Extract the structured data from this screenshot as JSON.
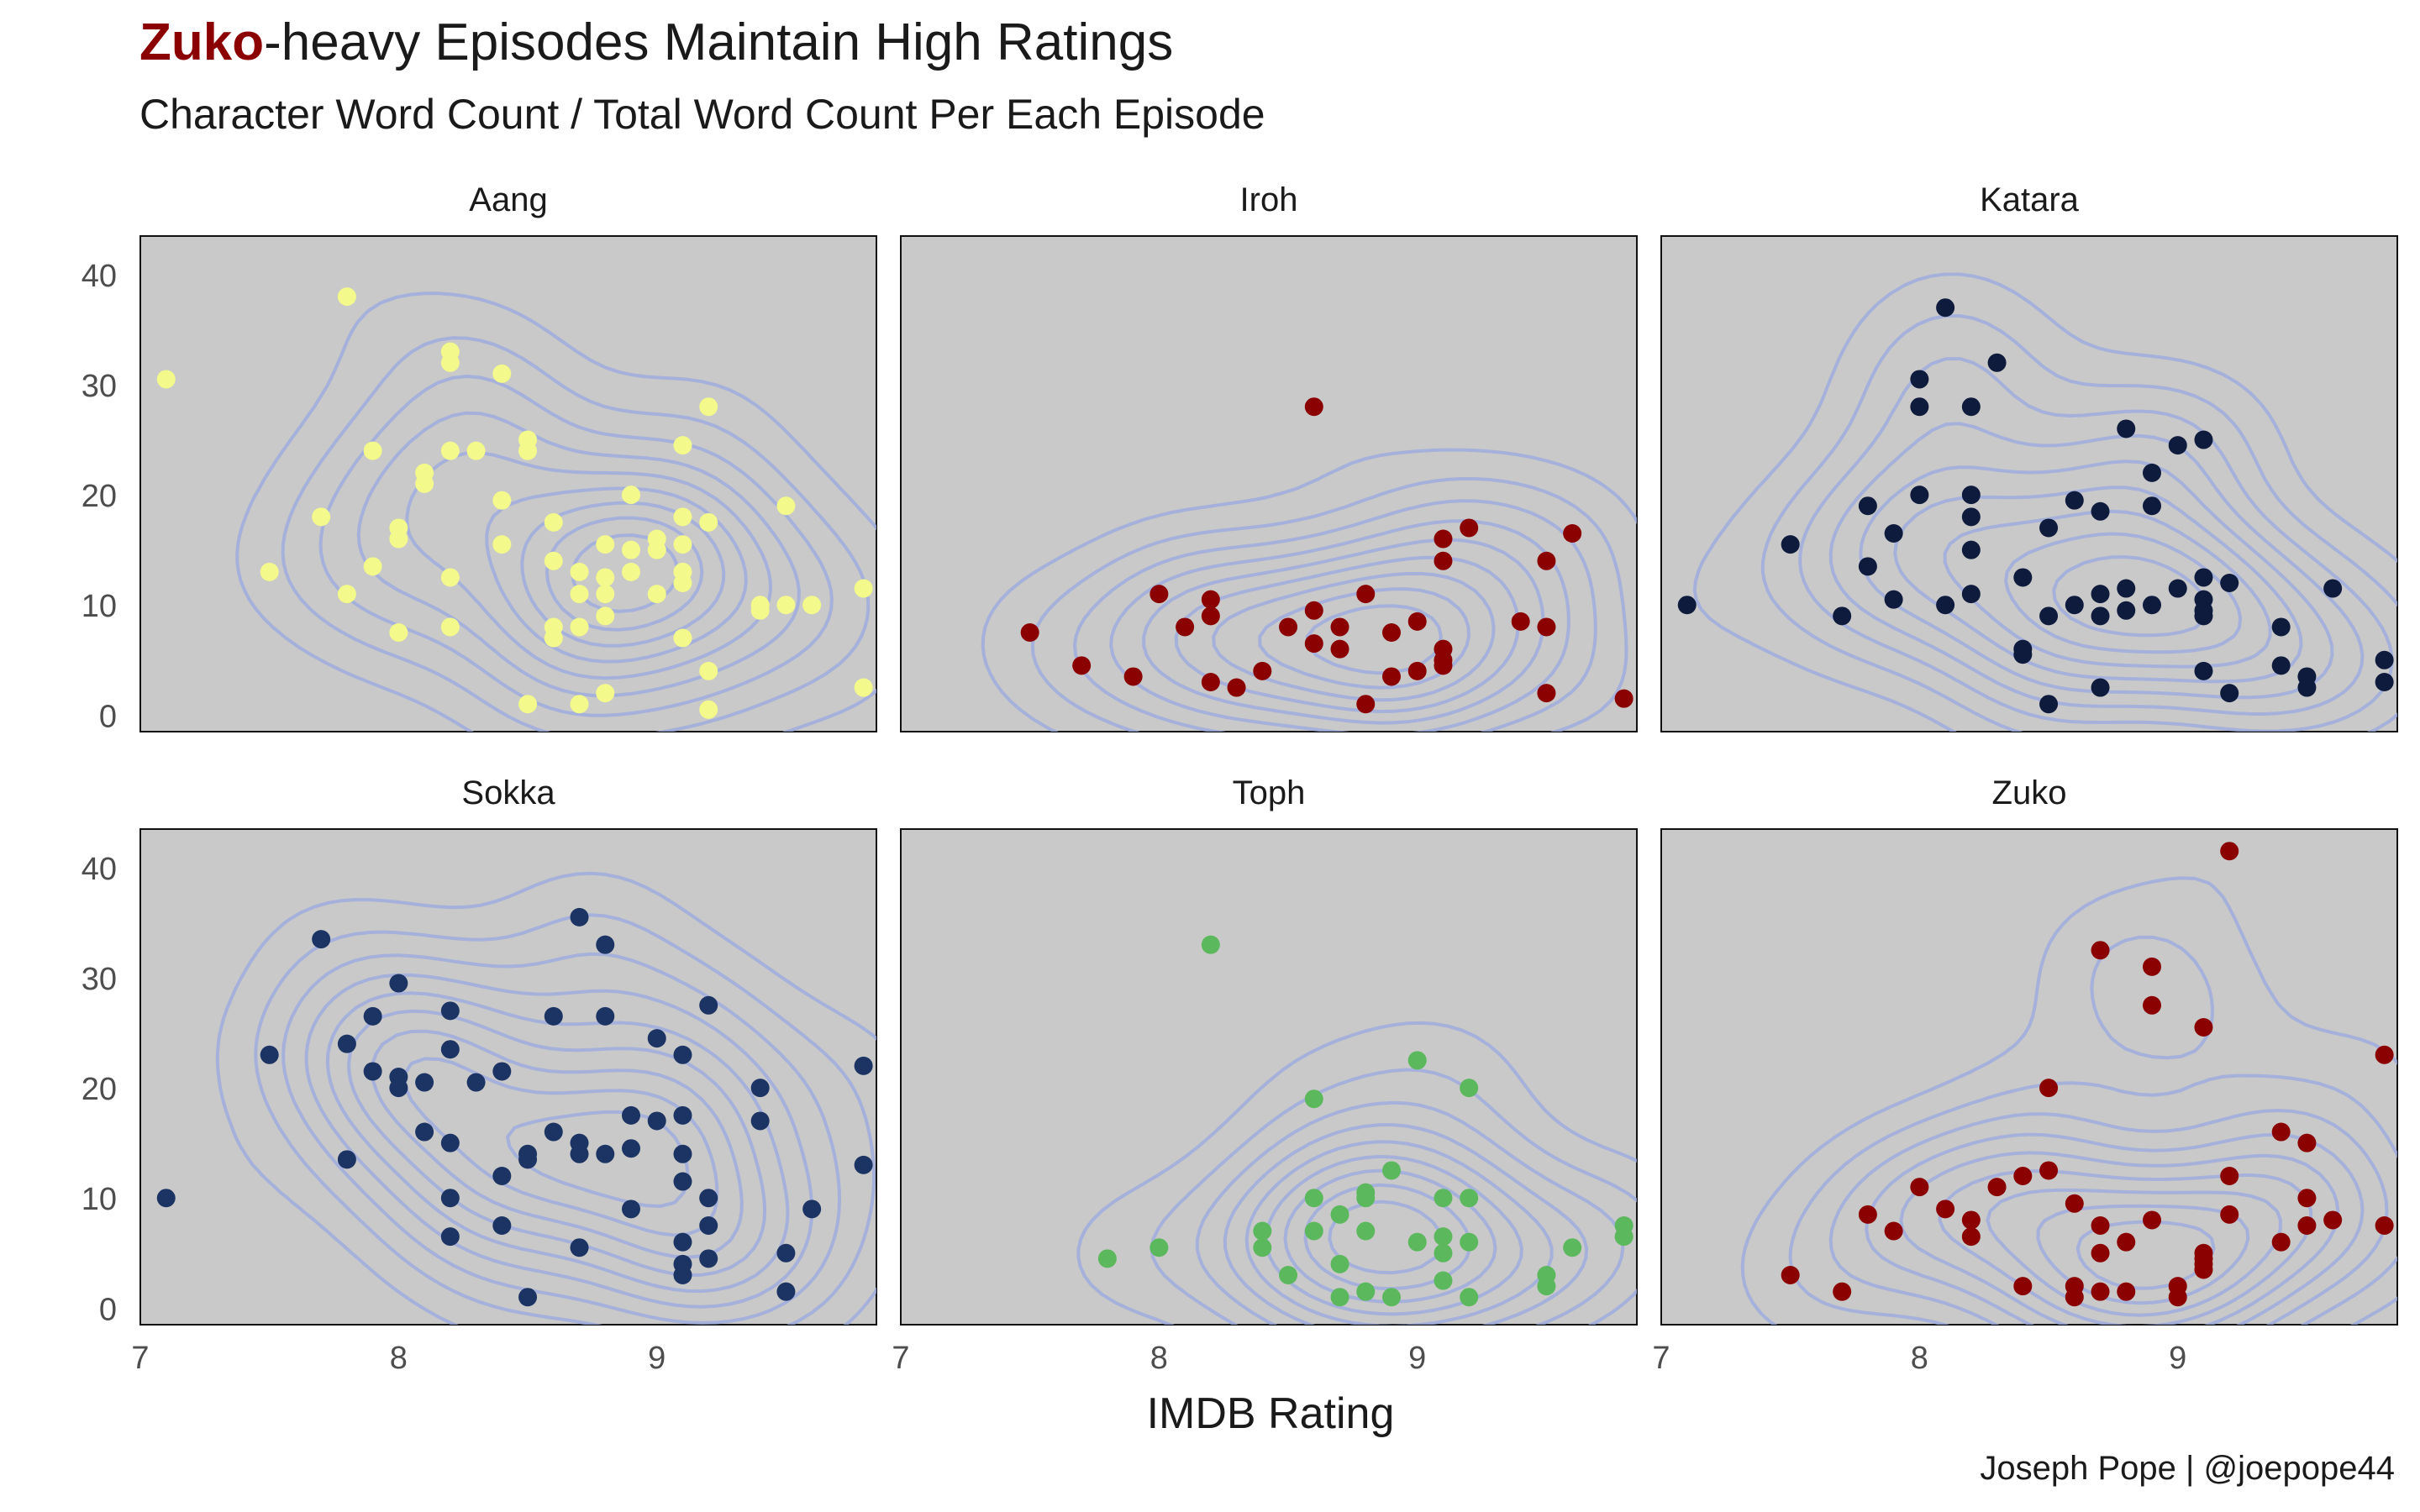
{
  "title": {
    "highlight": "Zuko",
    "rest": "-heavy Episodes Maintain High Ratings",
    "highlight_color": "#8b0000"
  },
  "subtitle": "Character Word Count / Total Word Count Per Each Episode",
  "caption": "Joseph Pope | @joepope44",
  "chart_data": {
    "type": "scatter",
    "layout": "facet-grid 2x3",
    "xlabel": "IMDB Rating",
    "ylabel": "",
    "xlim": [
      7,
      9.85
    ],
    "ylim": [
      -1.5,
      43.5
    ],
    "xticks": [
      7,
      8,
      9
    ],
    "yticks": [
      0,
      10,
      20,
      30,
      40
    ],
    "panel_background": "#c9c9c9",
    "contour_color": "#9aa8e0",
    "grid": false,
    "overlay": "2D density contours",
    "panels": [
      {
        "name": "Aang",
        "color": "#f3f98a",
        "points": [
          [
            7.1,
            30.5
          ],
          [
            7.5,
            13
          ],
          [
            7.7,
            18
          ],
          [
            7.8,
            38
          ],
          [
            7.8,
            11
          ],
          [
            7.9,
            24
          ],
          [
            7.9,
            13.5
          ],
          [
            8,
            17
          ],
          [
            8,
            16
          ],
          [
            8,
            7.5
          ],
          [
            8.1,
            22
          ],
          [
            8.1,
            21
          ],
          [
            8.2,
            24
          ],
          [
            8.2,
            33
          ],
          [
            8.2,
            32
          ],
          [
            8.2,
            12.5
          ],
          [
            8.2,
            8
          ],
          [
            8.3,
            24
          ],
          [
            8.4,
            31
          ],
          [
            8.4,
            19.5
          ],
          [
            8.4,
            15.5
          ],
          [
            8.5,
            25
          ],
          [
            8.5,
            24
          ],
          [
            8.5,
            1
          ],
          [
            8.6,
            17.5
          ],
          [
            8.6,
            14
          ],
          [
            8.6,
            8
          ],
          [
            8.6,
            7
          ],
          [
            8.7,
            13
          ],
          [
            8.7,
            11
          ],
          [
            8.7,
            8
          ],
          [
            8.7,
            1
          ],
          [
            8.8,
            15.5
          ],
          [
            8.8,
            12.5
          ],
          [
            8.8,
            11
          ],
          [
            8.8,
            9
          ],
          [
            8.8,
            2
          ],
          [
            8.9,
            20
          ],
          [
            8.9,
            15
          ],
          [
            8.9,
            13
          ],
          [
            9,
            16
          ],
          [
            9,
            15
          ],
          [
            9,
            11
          ],
          [
            9.1,
            24.5
          ],
          [
            9.1,
            18
          ],
          [
            9.1,
            15.5
          ],
          [
            9.1,
            13
          ],
          [
            9.1,
            12
          ],
          [
            9.1,
            7
          ],
          [
            9.2,
            28
          ],
          [
            9.2,
            17.5
          ],
          [
            9.2,
            4
          ],
          [
            9.2,
            0.5
          ],
          [
            9.4,
            10
          ],
          [
            9.4,
            9.5
          ],
          [
            9.5,
            19
          ],
          [
            9.5,
            10
          ],
          [
            9.6,
            10
          ],
          [
            9.8,
            11.5
          ],
          [
            9.8,
            2.5
          ]
        ]
      },
      {
        "name": "Iroh",
        "color": "#8b0000",
        "points": [
          [
            7.5,
            7.5
          ],
          [
            7.7,
            4.5
          ],
          [
            7.9,
            3.5
          ],
          [
            8,
            11
          ],
          [
            8.1,
            8
          ],
          [
            8.2,
            10.5
          ],
          [
            8.2,
            9
          ],
          [
            8.2,
            3
          ],
          [
            8.3,
            2.5
          ],
          [
            8.4,
            4
          ],
          [
            8.5,
            8
          ],
          [
            8.6,
            28
          ],
          [
            8.6,
            9.5
          ],
          [
            8.6,
            6.5
          ],
          [
            8.7,
            8
          ],
          [
            8.7,
            6
          ],
          [
            8.8,
            11
          ],
          [
            8.8,
            1
          ],
          [
            8.9,
            7.5
          ],
          [
            8.9,
            3.5
          ],
          [
            9,
            8.5
          ],
          [
            9,
            4
          ],
          [
            9.1,
            16
          ],
          [
            9.1,
            14
          ],
          [
            9.1,
            6
          ],
          [
            9.1,
            5
          ],
          [
            9.1,
            4.5
          ],
          [
            9.2,
            17
          ],
          [
            9.4,
            8.5
          ],
          [
            9.5,
            14
          ],
          [
            9.5,
            8
          ],
          [
            9.5,
            2
          ],
          [
            9.6,
            16.5
          ],
          [
            9.8,
            1.5
          ]
        ]
      },
      {
        "name": "Katara",
        "color": "#0f1b3d",
        "points": [
          [
            7.1,
            10
          ],
          [
            7.5,
            15.5
          ],
          [
            7.7,
            9
          ],
          [
            7.8,
            19
          ],
          [
            7.8,
            13.5
          ],
          [
            7.9,
            10.5
          ],
          [
            7.9,
            16.5
          ],
          [
            8,
            30.5
          ],
          [
            8,
            28
          ],
          [
            8,
            20
          ],
          [
            8.1,
            37
          ],
          [
            8.1,
            10
          ],
          [
            8.2,
            28
          ],
          [
            8.2,
            20
          ],
          [
            8.2,
            18
          ],
          [
            8.2,
            15
          ],
          [
            8.2,
            11
          ],
          [
            8.3,
            32
          ],
          [
            8.4,
            12.5
          ],
          [
            8.4,
            6
          ],
          [
            8.4,
            5.5
          ],
          [
            8.5,
            17
          ],
          [
            8.5,
            9
          ],
          [
            8.5,
            1
          ],
          [
            8.6,
            19.5
          ],
          [
            8.6,
            10
          ],
          [
            8.7,
            18.5
          ],
          [
            8.7,
            11
          ],
          [
            8.7,
            9
          ],
          [
            8.7,
            2.5
          ],
          [
            8.8,
            26
          ],
          [
            8.8,
            11.5
          ],
          [
            8.8,
            9.5
          ],
          [
            8.9,
            22
          ],
          [
            8.9,
            19
          ],
          [
            8.9,
            10
          ],
          [
            9,
            24.5
          ],
          [
            9,
            11.5
          ],
          [
            9.1,
            25
          ],
          [
            9.1,
            12.5
          ],
          [
            9.1,
            10.5
          ],
          [
            9.1,
            9.5
          ],
          [
            9.1,
            9
          ],
          [
            9.1,
            4
          ],
          [
            9.2,
            12
          ],
          [
            9.2,
            2
          ],
          [
            9.4,
            8
          ],
          [
            9.4,
            4.5
          ],
          [
            9.5,
            3.5
          ],
          [
            9.5,
            2.5
          ],
          [
            9.6,
            11.5
          ],
          [
            9.8,
            5
          ],
          [
            9.8,
            3
          ]
        ]
      },
      {
        "name": "Sokka",
        "color": "#1c3464",
        "points": [
          [
            7.1,
            10
          ],
          [
            7.5,
            23
          ],
          [
            7.7,
            33.5
          ],
          [
            7.8,
            24
          ],
          [
            7.8,
            13.5
          ],
          [
            7.9,
            26.5
          ],
          [
            7.9,
            21.5
          ],
          [
            8,
            29.5
          ],
          [
            8,
            21
          ],
          [
            8,
            20
          ],
          [
            8.1,
            20.5
          ],
          [
            8.1,
            16
          ],
          [
            8.2,
            27
          ],
          [
            8.2,
            23.5
          ],
          [
            8.2,
            15
          ],
          [
            8.2,
            10
          ],
          [
            8.2,
            6.5
          ],
          [
            8.3,
            20.5
          ],
          [
            8.4,
            21.5
          ],
          [
            8.4,
            12
          ],
          [
            8.4,
            7.5
          ],
          [
            8.5,
            14
          ],
          [
            8.5,
            13.5
          ],
          [
            8.5,
            1
          ],
          [
            8.6,
            26.5
          ],
          [
            8.6,
            16
          ],
          [
            8.7,
            35.5
          ],
          [
            8.7,
            15
          ],
          [
            8.7,
            14
          ],
          [
            8.7,
            5.5
          ],
          [
            8.8,
            33
          ],
          [
            8.8,
            26.5
          ],
          [
            8.8,
            14
          ],
          [
            8.9,
            17.5
          ],
          [
            8.9,
            14.5
          ],
          [
            8.9,
            9
          ],
          [
            9,
            24.5
          ],
          [
            9,
            17
          ],
          [
            9.1,
            23
          ],
          [
            9.1,
            17.5
          ],
          [
            9.1,
            14
          ],
          [
            9.1,
            11.5
          ],
          [
            9.1,
            6
          ],
          [
            9.1,
            4
          ],
          [
            9.1,
            3
          ],
          [
            9.2,
            27.5
          ],
          [
            9.2,
            10
          ],
          [
            9.2,
            7.5
          ],
          [
            9.2,
            4.5
          ],
          [
            9.4,
            20
          ],
          [
            9.4,
            17
          ],
          [
            9.5,
            5
          ],
          [
            9.5,
            1.5
          ],
          [
            9.6,
            9
          ],
          [
            9.8,
            22
          ],
          [
            9.8,
            13
          ]
        ]
      },
      {
        "name": "Toph",
        "color": "#5cb85c",
        "points": [
          [
            7.8,
            4.5
          ],
          [
            8,
            5.5
          ],
          [
            8.2,
            33
          ],
          [
            8.4,
            7
          ],
          [
            8.4,
            5.5
          ],
          [
            8.5,
            3
          ],
          [
            8.6,
            19
          ],
          [
            8.6,
            10
          ],
          [
            8.6,
            7
          ],
          [
            8.7,
            8.5
          ],
          [
            8.7,
            4
          ],
          [
            8.7,
            1
          ],
          [
            8.8,
            10.5
          ],
          [
            8.8,
            10
          ],
          [
            8.8,
            7
          ],
          [
            8.8,
            1.5
          ],
          [
            8.9,
            12.5
          ],
          [
            8.9,
            1
          ],
          [
            9,
            22.5
          ],
          [
            9,
            6
          ],
          [
            9.1,
            10
          ],
          [
            9.1,
            6.5
          ],
          [
            9.1,
            5
          ],
          [
            9.1,
            2.5
          ],
          [
            9.2,
            20
          ],
          [
            9.2,
            10
          ],
          [
            9.2,
            6
          ],
          [
            9.2,
            1
          ],
          [
            9.5,
            3
          ],
          [
            9.5,
            2
          ],
          [
            9.6,
            5.5
          ],
          [
            9.8,
            7.5
          ],
          [
            9.8,
            6.5
          ]
        ]
      },
      {
        "name": "Zuko",
        "color": "#8b0000",
        "points": [
          [
            7.5,
            3
          ],
          [
            7.7,
            1.5
          ],
          [
            7.8,
            8.5
          ],
          [
            7.9,
            7
          ],
          [
            8,
            11
          ],
          [
            8.1,
            9
          ],
          [
            8.2,
            8
          ],
          [
            8.2,
            6.5
          ],
          [
            8.3,
            11
          ],
          [
            8.4,
            12
          ],
          [
            8.4,
            2
          ],
          [
            8.5,
            20
          ],
          [
            8.5,
            12.5
          ],
          [
            8.6,
            9.5
          ],
          [
            8.6,
            2
          ],
          [
            8.6,
            1
          ],
          [
            8.7,
            32.5
          ],
          [
            8.7,
            7.5
          ],
          [
            8.7,
            5
          ],
          [
            8.7,
            1.5
          ],
          [
            8.8,
            6
          ],
          [
            8.8,
            1.5
          ],
          [
            8.9,
            31
          ],
          [
            8.9,
            27.5
          ],
          [
            8.9,
            8
          ],
          [
            9,
            2
          ],
          [
            9,
            1
          ],
          [
            9.1,
            25.5
          ],
          [
            9.1,
            5
          ],
          [
            9.1,
            4.5
          ],
          [
            9.1,
            4
          ],
          [
            9.1,
            3.5
          ],
          [
            9.2,
            41.5
          ],
          [
            9.2,
            12
          ],
          [
            9.2,
            8.5
          ],
          [
            9.4,
            16
          ],
          [
            9.4,
            6
          ],
          [
            9.5,
            15
          ],
          [
            9.5,
            10
          ],
          [
            9.5,
            7.5
          ],
          [
            9.6,
            8
          ],
          [
            9.8,
            23
          ],
          [
            9.8,
            7.5
          ]
        ]
      }
    ]
  }
}
